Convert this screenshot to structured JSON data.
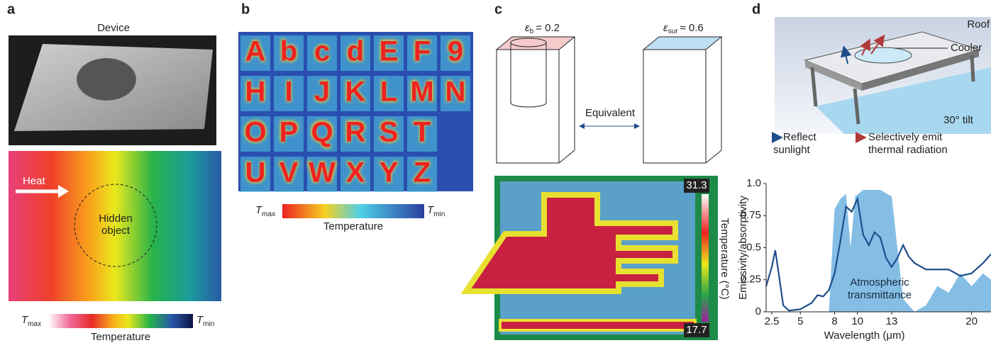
{
  "panels": {
    "a": {
      "label": "a",
      "title": "Device",
      "arrow": "Heat",
      "object": "Hidden object",
      "bar": {
        "t": "T",
        "max": "max",
        "min": "min",
        "title": "Temperature"
      }
    },
    "b": {
      "label": "b",
      "letters": [
        [
          "A",
          "b",
          "c",
          "d",
          "E",
          "F",
          "9"
        ],
        [
          "H",
          "I",
          "J",
          "K",
          "L",
          "M",
          "N"
        ],
        [
          "O",
          "P",
          "Q",
          "R",
          "S",
          "T"
        ],
        [
          "U",
          "V",
          "W",
          "X",
          "Y",
          "Z"
        ]
      ],
      "bar": {
        "t": "T",
        "max": "max",
        "min": "min",
        "title": "Temperature"
      }
    },
    "c": {
      "label": "c",
      "left": {
        "symbol": "ε",
        "sub": "b",
        "value": "= 0.2"
      },
      "right": {
        "symbol": "ε",
        "sub": "sur",
        "value": "≈ 0.6"
      },
      "link": "Equivalent",
      "bar": {
        "max": "31.3",
        "min": "17.7",
        "title": "Temperature (°C)"
      }
    },
    "d": {
      "label": "d",
      "roof": "Roof",
      "cooler": "Cooler",
      "tilt": "30° tilt",
      "reflect": [
        "Reflect",
        "sunlight"
      ],
      "emit": [
        "Selectively emit",
        "thermal radiation"
      ]
    }
  },
  "chart_data": {
    "type": "line",
    "xlabel": "Wavelength (μm)",
    "ylabel": "Emissivity/absorptivity",
    "xlim": [
      2,
      21.7
    ],
    "ylim": [
      0,
      1.0
    ],
    "xticks": [
      2.5,
      5,
      8,
      10,
      13,
      20
    ],
    "yticks": [
      0,
      0.25,
      0.5,
      0.75,
      {
        "value": 1.0,
        "label": "1.0"
      }
    ],
    "series": [
      {
        "name": "Atmospheric transmittance",
        "fill": true,
        "color": "#6fb3e0",
        "x": [
          7.5,
          7.8,
          8,
          8.5,
          9,
          9.4,
          9.8,
          10.5,
          12,
          13,
          13.5,
          14,
          15,
          16,
          17,
          18,
          19,
          20,
          21,
          21.7
        ],
        "values": [
          0,
          0.5,
          0.8,
          0.88,
          0.92,
          0.5,
          0.9,
          0.95,
          0.95,
          0.9,
          0.5,
          0.1,
          0,
          0.05,
          0.2,
          0.15,
          0.3,
          0.2,
          0.3,
          0.25
        ]
      },
      {
        "color": "#1f4e8c",
        "x": [
          2,
          2.5,
          2.8,
          3.1,
          3.5,
          4,
          5,
          6,
          6.5,
          7,
          7.5,
          8,
          8.5,
          9,
          9.5,
          10,
          10.5,
          11,
          11.5,
          12,
          12.5,
          13,
          13.5,
          14,
          14.5,
          15,
          16,
          17,
          18,
          19,
          20,
          21,
          21.7
        ],
        "values": [
          0.2,
          0.35,
          0.48,
          0.3,
          0.05,
          0.01,
          0.02,
          0.07,
          0.13,
          0.12,
          0.17,
          0.3,
          0.55,
          0.82,
          0.78,
          0.88,
          0.6,
          0.52,
          0.62,
          0.58,
          0.42,
          0.35,
          0.42,
          0.52,
          0.43,
          0.38,
          0.33,
          0.33,
          0.33,
          0.28,
          0.3,
          0.38,
          0.45
        ]
      }
    ]
  }
}
